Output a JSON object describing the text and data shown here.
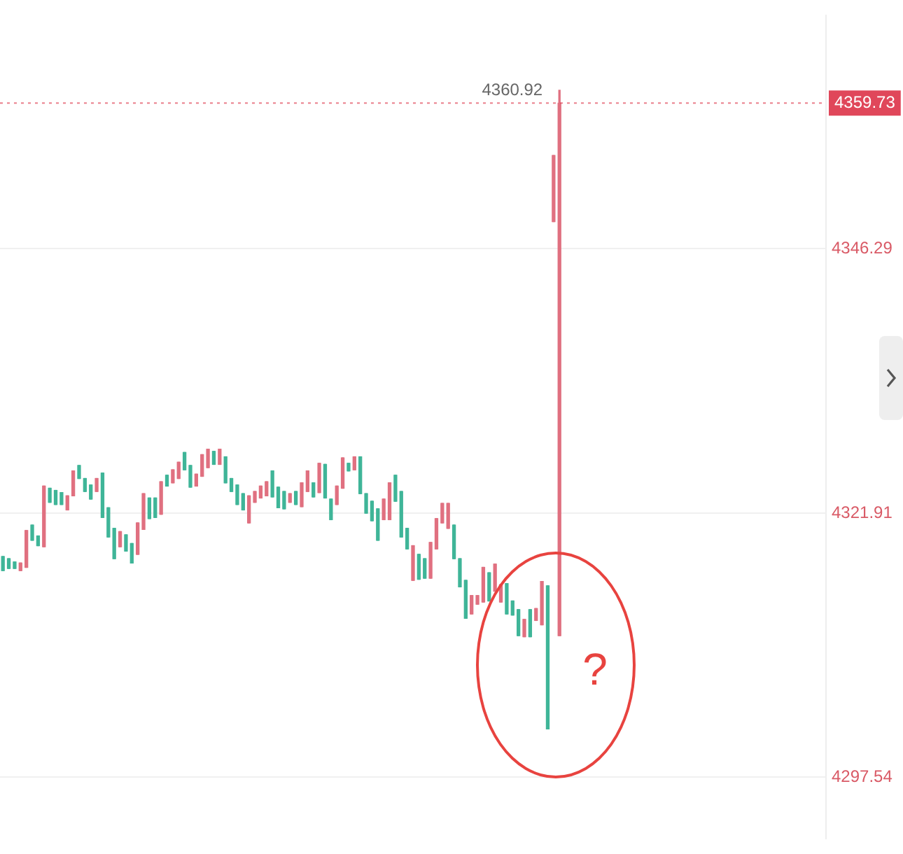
{
  "chart_data": {
    "type": "candlestick",
    "categories": [
      null,
      null,
      null,
      null,
      null,
      null,
      null,
      null,
      null,
      null,
      null,
      null,
      null,
      null,
      null,
      null,
      null,
      null,
      null,
      null,
      null,
      null,
      null,
      null,
      null,
      null,
      null,
      null,
      null,
      null,
      null,
      null,
      null,
      null,
      null,
      null,
      null,
      null,
      null,
      null,
      null,
      null,
      null,
      null,
      null,
      null,
      null,
      null,
      null,
      null,
      null,
      null,
      null,
      null,
      null,
      null,
      null,
      null,
      null,
      null,
      null,
      null,
      null,
      null,
      null,
      null,
      null,
      null,
      null,
      null,
      null,
      null,
      null,
      null,
      null,
      null,
      null,
      null,
      null,
      null,
      null,
      null,
      null,
      null,
      null,
      null,
      null,
      null,
      null,
      null,
      null,
      null,
      null,
      null,
      null,
      null,
      null,
      null,
      null,
      null,
      null,
      null,
      null,
      null,
      null,
      null,
      null,
      null,
      null,
      null,
      null,
      null,
      null,
      null,
      null,
      null,
      null,
      null,
      null,
      null,
      null,
      null,
      null,
      null,
      null,
      null,
      null,
      null,
      null,
      null,
      null,
      null,
      null,
      null,
      null,
      null,
      null,
      null,
      null,
      null,
      null
    ],
    "ohlc": [
      [
        4317.9,
        4317.9,
        4316.6,
        4316.6
      ],
      [
        4317.7,
        4317.7,
        4316.8,
        4316.8
      ],
      [
        4317.4,
        4317.4,
        4316.8,
        4316.8
      ],
      [
        4316.6,
        4317.3,
        4316.6,
        4317.3
      ],
      [
        4316.9,
        4320.3,
        4316.9,
        4320.3
      ],
      [
        4320.8,
        4320.8,
        4319.4,
        4319.4
      ],
      [
        4319.8,
        4319.8,
        4318.9,
        4318.9
      ],
      [
        4318.8,
        4324.4,
        4318.8,
        4324.4
      ],
      [
        4324.2,
        4324.2,
        4322.9,
        4322.9
      ],
      [
        4324.0,
        4324.0,
        4322.7,
        4322.7
      ],
      [
        4323.8,
        4323.8,
        4322.7,
        4322.7
      ],
      [
        4322.2,
        4323.5,
        4322.2,
        4323.5
      ],
      [
        4323.5,
        4325.8,
        4323.5,
        4325.8
      ],
      [
        4326.3,
        4326.3,
        4325.1,
        4325.1
      ],
      [
        4325.1,
        4325.1,
        4323.9,
        4323.9
      ],
      [
        4324.5,
        4324.5,
        4323.2,
        4323.2
      ],
      [
        4323.9,
        4325.1,
        4323.9,
        4325.1
      ],
      [
        4325.6,
        4325.6,
        4321.5,
        4321.5
      ],
      [
        4322.4,
        4322.4,
        4319.7,
        4319.7
      ],
      [
        4320.5,
        4320.5,
        4317.7,
        4317.7
      ],
      [
        4318.8,
        4320.2,
        4318.8,
        4320.2
      ],
      [
        4319.9,
        4319.9,
        4318.4,
        4318.4
      ],
      [
        4319.1,
        4319.1,
        4317.3,
        4317.3
      ],
      [
        4318.1,
        4321.0,
        4318.1,
        4321.0
      ],
      [
        4320.4,
        4323.7,
        4320.4,
        4323.7
      ],
      [
        4323.3,
        4323.3,
        4321.4,
        4321.4
      ],
      [
        4323.3,
        4323.3,
        4321.5,
        4321.5
      ],
      [
        4321.8,
        4324.8,
        4321.8,
        4324.8
      ],
      [
        4325.4,
        4325.4,
        4324.4,
        4324.4
      ],
      [
        4324.7,
        4325.9,
        4324.7,
        4325.9
      ],
      [
        4325.1,
        4326.6,
        4325.1,
        4326.6
      ],
      [
        4327.5,
        4327.5,
        4325.9,
        4325.9
      ],
      [
        4326.3,
        4326.3,
        4324.3,
        4324.3
      ],
      [
        4324.4,
        4325.5,
        4324.4,
        4325.5
      ],
      [
        4325.3,
        4327.3,
        4325.3,
        4327.3
      ],
      [
        4326.1,
        4327.8,
        4326.1,
        4327.8
      ],
      [
        4327.6,
        4327.6,
        4326.4,
        4326.4
      ],
      [
        4326.4,
        4327.8,
        4326.4,
        4327.8
      ],
      [
        4327.1,
        4327.1,
        4324.7,
        4324.7
      ],
      [
        4325.1,
        4325.1,
        4323.9,
        4323.9
      ],
      [
        4324.5,
        4324.5,
        4322.7,
        4322.7
      ],
      [
        4323.7,
        4323.7,
        4322.2,
        4322.2
      ],
      [
        4321.0,
        4323.5,
        4321.0,
        4323.5
      ],
      [
        4322.9,
        4323.9,
        4322.9,
        4323.9
      ],
      [
        4323.3,
        4324.4,
        4323.3,
        4324.4
      ],
      [
        4323.5,
        4324.8,
        4323.5,
        4324.8
      ],
      [
        4325.8,
        4325.8,
        4323.4,
        4323.4
      ],
      [
        4324.3,
        4324.3,
        4322.4,
        4322.4
      ],
      [
        4323.9,
        4323.9,
        4322.3,
        4322.3
      ],
      [
        4322.9,
        4323.7,
        4322.9,
        4323.7
      ],
      [
        4323.9,
        4323.9,
        4322.7,
        4322.7
      ],
      [
        4322.5,
        4324.7,
        4322.5,
        4324.7
      ],
      [
        4323.9,
        4325.8,
        4323.9,
        4325.8
      ],
      [
        4324.7,
        4324.7,
        4323.4,
        4323.4
      ],
      [
        4323.8,
        4326.5,
        4323.8,
        4326.5
      ],
      [
        4326.4,
        4326.4,
        4323.3,
        4323.3
      ],
      [
        4323.2,
        4323.2,
        4321.3,
        4321.3
      ],
      [
        4322.7,
        4324.4,
        4322.7,
        4324.4
      ],
      [
        4324.2,
        4327.0,
        4324.2,
        4327.0
      ],
      [
        4326.5,
        4326.5,
        4325.8,
        4325.8
      ],
      [
        4325.9,
        4327.1,
        4325.9,
        4327.1
      ],
      [
        4327.1,
        4327.1,
        4323.7,
        4323.7
      ],
      [
        4323.7,
        4323.7,
        4321.9,
        4321.9
      ],
      [
        4323.0,
        4323.0,
        4321.2,
        4321.2
      ],
      [
        4322.3,
        4322.3,
        4319.4,
        4319.4
      ],
      [
        4321.3,
        4323.2,
        4321.3,
        4323.2
      ],
      [
        4321.3,
        4324.7,
        4321.3,
        4324.7
      ],
      [
        4325.4,
        4325.4,
        4323.0,
        4323.0
      ],
      [
        4323.9,
        4323.9,
        4319.7,
        4319.7
      ],
      [
        4320.5,
        4320.5,
        4318.6,
        4318.6
      ],
      [
        4315.7,
        4318.9,
        4315.7,
        4318.9
      ],
      [
        4318.1,
        4318.1,
        4315.8,
        4315.8
      ],
      [
        4317.7,
        4317.7,
        4315.9,
        4315.9
      ],
      [
        4315.9,
        4319.2,
        4315.9,
        4319.2
      ],
      [
        4318.6,
        4321.4,
        4318.6,
        4321.4
      ],
      [
        4321.0,
        4322.8,
        4321.0,
        4322.8
      ],
      [
        4320.5,
        4322.8,
        4320.5,
        4322.8
      ],
      [
        4320.8,
        4320.8,
        4317.7,
        4317.7
      ],
      [
        4317.7,
        4317.7,
        4315.1,
        4315.1
      ],
      [
        4315.7,
        4315.7,
        4312.2,
        4312.2
      ],
      [
        4312.6,
        4314.3,
        4312.6,
        4314.3
      ],
      [
        4313.5,
        4314.3,
        4313.5,
        4314.3
      ],
      [
        4313.7,
        4316.9,
        4313.7,
        4316.9
      ],
      [
        4316.4,
        4316.4,
        4313.8,
        4313.8
      ],
      [
        4314.7,
        4317.2,
        4314.7,
        4317.2
      ],
      [
        4313.7,
        4315.3,
        4313.7,
        4315.3
      ],
      [
        4315.4,
        4315.4,
        4312.6,
        4312.6
      ],
      [
        4313.8,
        4313.8,
        4312.5,
        4312.5
      ],
      [
        4313.0,
        4313.0,
        4310.6,
        4310.6
      ],
      [
        4310.5,
        4312.1,
        4310.5,
        4312.1
      ],
      [
        4313.0,
        4313.0,
        4310.5,
        4310.5
      ],
      [
        4312.0,
        4313.1,
        4312.0,
        4313.1
      ],
      [
        4311.6,
        4315.6,
        4311.6,
        4315.6
      ],
      [
        4315.2,
        4315.2,
        4302.0,
        4302.0
      ],
      [
        4348.8,
        4354.9,
        4348.8,
        4354.9
      ],
      [
        4310.6,
        4360.92,
        4310.6,
        4359.73
      ],
      null,
      null,
      null,
      null,
      null,
      null,
      null,
      null,
      null,
      null,
      null,
      null,
      null,
      null,
      null,
      null,
      null,
      null,
      null,
      null,
      null,
      null,
      null,
      null,
      null,
      null,
      null,
      null,
      null,
      null,
      null,
      null,
      null,
      null,
      null,
      null,
      null,
      null,
      null,
      null,
      null,
      null,
      null,
      null,
      null
    ],
    "colors": [
      "#3fb598",
      "#3fb598",
      "#3fb598",
      "#e07080",
      "#e07080",
      "#3fb598",
      "#3fb598",
      "#e07080",
      "#3fb598",
      "#3fb598",
      "#3fb598",
      "#e07080",
      "#e07080",
      "#3fb598",
      "#3fb598",
      "#3fb598",
      "#e07080",
      "#3fb598",
      "#3fb598",
      "#3fb598",
      "#e07080",
      "#3fb598",
      "#3fb598",
      "#e07080",
      "#e07080",
      "#3fb598",
      "#3fb598",
      "#e07080",
      "#3fb598",
      "#e07080",
      "#e07080",
      "#3fb598",
      "#3fb598",
      "#e07080",
      "#e07080",
      "#e07080",
      "#3fb598",
      "#e07080",
      "#3fb598",
      "#3fb598",
      "#3fb598",
      "#3fb598",
      "#e07080",
      "#e07080",
      "#e07080",
      "#e07080",
      "#3fb598",
      "#3fb598",
      "#3fb598",
      "#e07080",
      "#3fb598",
      "#e07080",
      "#e07080",
      "#3fb598",
      "#e07080",
      "#3fb598",
      "#3fb598",
      "#e07080",
      "#e07080",
      "#3fb598",
      "#e07080",
      "#3fb598",
      "#3fb598",
      "#3fb598",
      "#3fb598",
      "#e07080",
      "#e07080",
      "#3fb598",
      "#3fb598",
      "#3fb598",
      "#e07080",
      "#3fb598",
      "#3fb598",
      "#e07080",
      "#e07080",
      "#e07080",
      "#e07080",
      "#3fb598",
      "#3fb598",
      "#3fb598",
      "#e07080",
      "#e07080",
      "#e07080",
      "#3fb598",
      "#e07080",
      "#e07080",
      "#3fb598",
      "#3fb598",
      "#3fb598",
      "#e07080",
      "#3fb598",
      "#e07080",
      "#e07080",
      "#3fb598",
      "#e07080",
      "#e07080",
      null,
      null,
      null,
      null,
      null,
      null,
      null,
      null,
      null,
      null,
      null,
      null,
      null,
      null,
      null,
      null,
      null,
      null,
      null,
      null,
      null,
      null,
      null,
      null,
      null,
      null,
      null,
      null,
      null,
      null,
      null,
      null,
      null,
      null,
      null,
      null,
      null,
      null,
      null,
      null,
      null,
      null,
      null,
      null,
      null
    ],
    "ylim": [
      4291.9,
      4367.8
    ],
    "yticks": [
      4297.54,
      4321.91,
      4346.29
    ],
    "ref_lines": [
      {
        "axis": "y",
        "value": 4359.73,
        "label": "4359.73",
        "color": "#e0475a",
        "line_style": "dotted"
      }
    ],
    "annotations": [
      "4360.92",
      "?"
    ],
    "grid": "y"
  }
}
